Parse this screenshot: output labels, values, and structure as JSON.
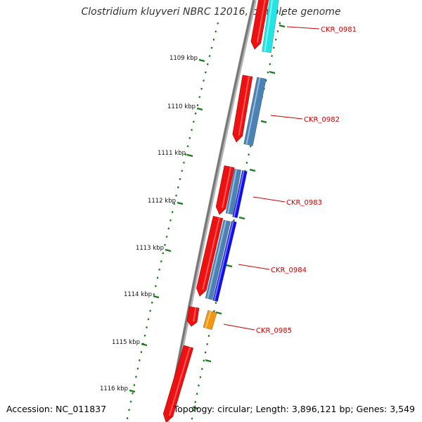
{
  "title": "Clostridium kluyveri NBRC 12016, complete genome",
  "accession_text": "Accession: NC_011837",
  "topology_text": "Topology: circular; Length: 3,896,121 bp; Genes: 3,549",
  "colors": {
    "backbone": "#777777",
    "tick": "#1b7a1b",
    "gene_red": "#ee1111",
    "label": "#cc0000",
    "cyan": "#22e5e5",
    "steelblue": "#4a82b6",
    "blue": "#1010ee",
    "orange": "#f5960f"
  },
  "kbp_labels": [
    "1109 kbp",
    "1110 kbp",
    "1111 kbp",
    "1112 kbp",
    "1113 kbp",
    "1114 kbp",
    "1115 kbp",
    "1116 kbp"
  ],
  "genes": [
    {
      "name": "CKR_0981",
      "track_color": "cyan"
    },
    {
      "name": "CKR_0982",
      "track_color": "steelblue"
    },
    {
      "name": "CKR_0983",
      "track_color": "blue"
    },
    {
      "name": "CKR_0984",
      "track_color": "blue"
    },
    {
      "name": "CKR_0985",
      "track_color": "orange"
    }
  ]
}
